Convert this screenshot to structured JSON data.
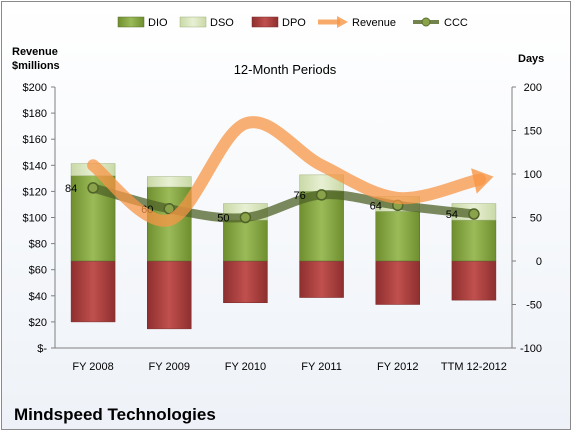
{
  "chart_data": {
    "type": "bar",
    "title": "12-Month Periods",
    "company": "Mindspeed Technologies",
    "left_axis_label": [
      "Revenue",
      "$millions"
    ],
    "right_axis_label": "Days",
    "left_ylim": [
      0,
      200
    ],
    "right_ylim": [
      -100,
      200
    ],
    "left_ticks": [
      "$-",
      "$20",
      "$40",
      "$60",
      "$80",
      "$100",
      "$120",
      "$140",
      "$160",
      "$180",
      "$200"
    ],
    "right_ticks": [
      "-100",
      "-50",
      "0",
      "50",
      "100",
      "150",
      "200"
    ],
    "categories": [
      "FY 2008",
      "FY 2009",
      "FY 2010",
      "FY 2011",
      "FY 2012",
      "TTM 12-2012"
    ],
    "legend_position": "top",
    "legend": [
      "DIO",
      "DSO",
      "DPO",
      "Revenue",
      "CCC"
    ],
    "series": [
      {
        "name": "DIO",
        "axis": "days",
        "color": "#7a9a3a",
        "values": [
          98,
          85,
          47,
          80,
          57,
          47
        ]
      },
      {
        "name": "DSO",
        "axis": "days",
        "color": "#d7e4bd",
        "values": [
          14,
          12,
          19,
          19,
          17,
          19
        ]
      },
      {
        "name": "DPO",
        "axis": "days",
        "color": "#a13c3c",
        "values": [
          -70,
          -78,
          -48,
          -42,
          -50,
          -45
        ]
      },
      {
        "name": "Revenue",
        "axis": "revenue",
        "color": "#f79646",
        "values": [
          140,
          98,
          172,
          140,
          115,
          128
        ]
      },
      {
        "name": "CCC",
        "axis": "days",
        "color": "#5a6e2e",
        "values": [
          84,
          60,
          50,
          76,
          64,
          54
        ]
      }
    ],
    "data_labels": [
      "84",
      "60",
      "50",
      "76",
      "64",
      "54"
    ],
    "grid": false
  }
}
